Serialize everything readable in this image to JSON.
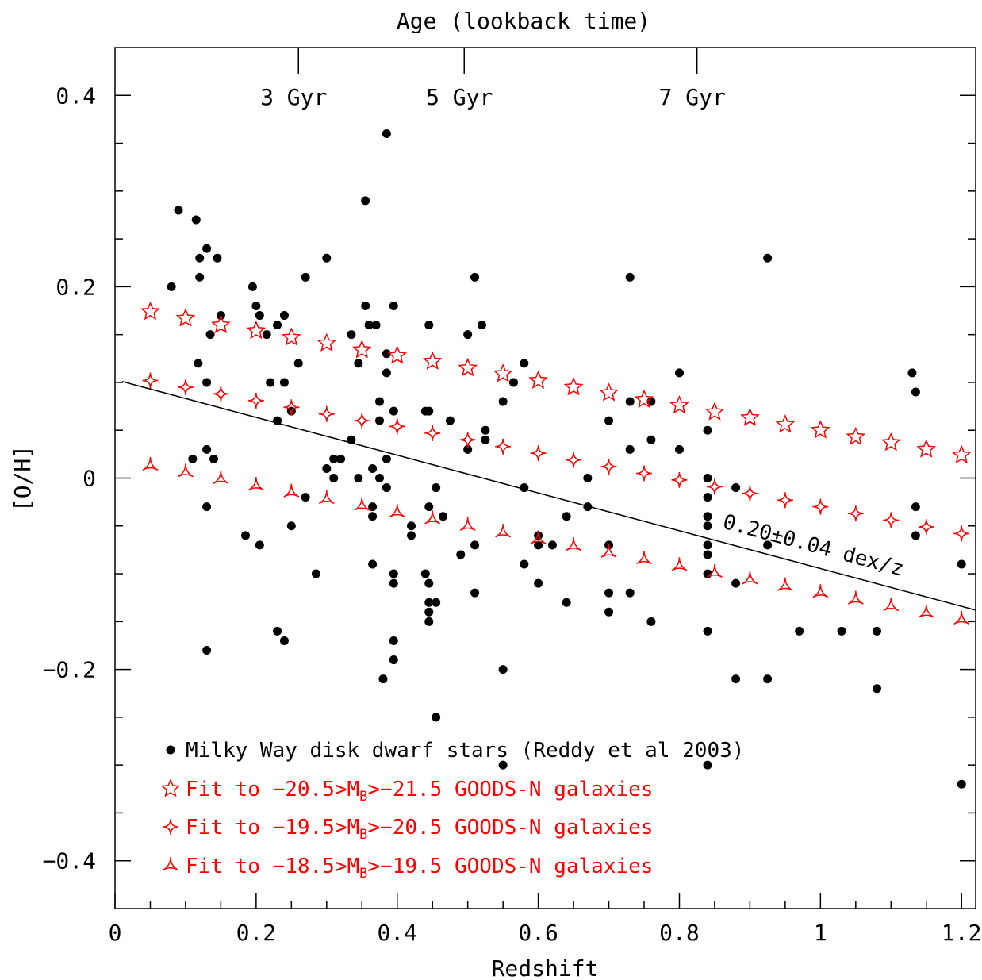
{
  "chart_data": {
    "type": "scatter",
    "title": "",
    "top_axis_label": "Age (lookback time)",
    "top_axis_ticks": [
      {
        "x": 0.26,
        "label": "3 Gyr"
      },
      {
        "x": 0.495,
        "label": "5 Gyr"
      },
      {
        "x": 0.825,
        "label": "7 Gyr"
      }
    ],
    "xlabel": "Redshift",
    "ylabel": "[O/H]",
    "xlim": [
      0,
      1.22
    ],
    "ylim": [
      -0.45,
      0.45
    ],
    "x_ticks": [
      {
        "v": 0,
        "label": "0"
      },
      {
        "v": 0.2,
        "label": "0.2"
      },
      {
        "v": 0.4,
        "label": "0.4"
      },
      {
        "v": 0.6,
        "label": "0.6"
      },
      {
        "v": 0.8,
        "label": "0.8"
      },
      {
        "v": 1.0,
        "label": "1"
      },
      {
        "v": 1.2,
        "label": "1.2"
      }
    ],
    "y_ticks": [
      {
        "v": 0.4,
        "label": "0.4"
      },
      {
        "v": 0.2,
        "label": "0.2"
      },
      {
        "v": 0,
        "label": "0"
      },
      {
        "v": -0.2,
        "label": "−0.2"
      },
      {
        "v": -0.4,
        "label": "−0.4"
      }
    ],
    "colors": {
      "dots": "#000000",
      "fits": "#ff0000",
      "line": "#000000"
    },
    "series": [
      {
        "name": "Milky Way disk dwarf stars (Reddy et al 2003)",
        "marker": "filled-circle",
        "points": [
          [
            0.08,
            0.2
          ],
          [
            0.09,
            0.28
          ],
          [
            0.11,
            0.02
          ],
          [
            0.115,
            0.27
          ],
          [
            0.118,
            0.12
          ],
          [
            0.12,
            0.23
          ],
          [
            0.12,
            0.21
          ],
          [
            0.13,
            0.24
          ],
          [
            0.13,
            0.1
          ],
          [
            0.13,
            0.03
          ],
          [
            0.13,
            -0.03
          ],
          [
            0.13,
            -0.18
          ],
          [
            0.135,
            0.15
          ],
          [
            0.14,
            0.02
          ],
          [
            0.145,
            0.23
          ],
          [
            0.15,
            0.17
          ],
          [
            0.185,
            -0.06
          ],
          [
            0.195,
            0.2
          ],
          [
            0.2,
            0.18
          ],
          [
            0.205,
            0.17
          ],
          [
            0.205,
            -0.07
          ],
          [
            0.215,
            0.15
          ],
          [
            0.22,
            0.1
          ],
          [
            0.23,
            0.16
          ],
          [
            0.23,
            0.06
          ],
          [
            0.23,
            -0.16
          ],
          [
            0.24,
            0.17
          ],
          [
            0.24,
            0.1
          ],
          [
            0.24,
            -0.17
          ],
          [
            0.25,
            0.07
          ],
          [
            0.25,
            -0.05
          ],
          [
            0.26,
            0.12
          ],
          [
            0.27,
            0.21
          ],
          [
            0.27,
            -0.02
          ],
          [
            0.285,
            -0.1
          ],
          [
            0.3,
            0.23
          ],
          [
            0.3,
            0.01
          ],
          [
            0.31,
            0.02
          ],
          [
            0.31,
            0.0
          ],
          [
            0.32,
            0.02
          ],
          [
            0.335,
            0.15
          ],
          [
            0.335,
            0.04
          ],
          [
            0.345,
            0.12
          ],
          [
            0.345,
            0.0
          ],
          [
            0.355,
            0.29
          ],
          [
            0.355,
            0.18
          ],
          [
            0.36,
            0.16
          ],
          [
            0.365,
            0.01
          ],
          [
            0.365,
            -0.03
          ],
          [
            0.365,
            -0.04
          ],
          [
            0.365,
            -0.09
          ],
          [
            0.37,
            0.16
          ],
          [
            0.375,
            0.08
          ],
          [
            0.375,
            0.06
          ],
          [
            0.375,
            0.0
          ],
          [
            0.38,
            -0.21
          ],
          [
            0.385,
            0.36
          ],
          [
            0.385,
            0.13
          ],
          [
            0.385,
            0.11
          ],
          [
            0.385,
            0.02
          ],
          [
            0.385,
            -0.01
          ],
          [
            0.395,
            0.18
          ],
          [
            0.395,
            0.07
          ],
          [
            0.395,
            -0.1
          ],
          [
            0.395,
            -0.11
          ],
          [
            0.395,
            -0.17
          ],
          [
            0.395,
            -0.19
          ],
          [
            0.42,
            -0.05
          ],
          [
            0.42,
            -0.06
          ],
          [
            0.44,
            0.07
          ],
          [
            0.44,
            -0.1
          ],
          [
            0.445,
            0.16
          ],
          [
            0.445,
            0.07
          ],
          [
            0.445,
            -0.03
          ],
          [
            0.445,
            -0.11
          ],
          [
            0.445,
            -0.13
          ],
          [
            0.445,
            -0.14
          ],
          [
            0.445,
            -0.15
          ],
          [
            0.455,
            -0.01
          ],
          [
            0.455,
            -0.13
          ],
          [
            0.455,
            -0.25
          ],
          [
            0.465,
            -0.04
          ],
          [
            0.475,
            0.06
          ],
          [
            0.49,
            -0.08
          ],
          [
            0.5,
            0.15
          ],
          [
            0.5,
            0.03
          ],
          [
            0.51,
            0.21
          ],
          [
            0.51,
            -0.07
          ],
          [
            0.51,
            -0.12
          ],
          [
            0.52,
            0.16
          ],
          [
            0.525,
            0.05
          ],
          [
            0.525,
            0.04
          ],
          [
            0.55,
            0.08
          ],
          [
            0.55,
            -0.2
          ],
          [
            0.55,
            -0.3
          ],
          [
            0.565,
            0.1
          ],
          [
            0.58,
            0.12
          ],
          [
            0.58,
            -0.01
          ],
          [
            0.58,
            -0.09
          ],
          [
            0.6,
            -0.06
          ],
          [
            0.6,
            -0.07
          ],
          [
            0.6,
            -0.11
          ],
          [
            0.62,
            -0.07
          ],
          [
            0.64,
            -0.04
          ],
          [
            0.64,
            -0.13
          ],
          [
            0.67,
            0.0
          ],
          [
            0.67,
            -0.03
          ],
          [
            0.7,
            0.06
          ],
          [
            0.7,
            -0.07
          ],
          [
            0.7,
            -0.12
          ],
          [
            0.7,
            -0.14
          ],
          [
            0.73,
            0.21
          ],
          [
            0.73,
            0.08
          ],
          [
            0.73,
            0.03
          ],
          [
            0.73,
            -0.12
          ],
          [
            0.76,
            0.08
          ],
          [
            0.76,
            0.04
          ],
          [
            0.76,
            -0.15
          ],
          [
            0.8,
            0.11
          ],
          [
            0.8,
            0.03
          ],
          [
            0.84,
            0.05
          ],
          [
            0.84,
            0.0
          ],
          [
            0.84,
            -0.02
          ],
          [
            0.84,
            -0.04
          ],
          [
            0.84,
            -0.05
          ],
          [
            0.84,
            -0.07
          ],
          [
            0.84,
            -0.08
          ],
          [
            0.84,
            -0.1
          ],
          [
            0.84,
            -0.16
          ],
          [
            0.84,
            -0.3
          ],
          [
            0.88,
            -0.01
          ],
          [
            0.88,
            -0.11
          ],
          [
            0.88,
            -0.21
          ],
          [
            0.925,
            0.23
          ],
          [
            0.925,
            -0.07
          ],
          [
            0.925,
            -0.21
          ],
          [
            0.97,
            -0.16
          ],
          [
            1.03,
            -0.16
          ],
          [
            1.08,
            -0.16
          ],
          [
            1.08,
            -0.22
          ],
          [
            1.13,
            0.11
          ],
          [
            1.135,
            0.09
          ],
          [
            1.135,
            -0.03
          ],
          [
            1.135,
            -0.06
          ],
          [
            1.2,
            -0.09
          ],
          [
            1.2,
            -0.32
          ]
        ]
      },
      {
        "name": "Fit to −20.5>M_B>−21.5 GOODS-N galaxies",
        "marker": "star",
        "points": [
          [
            0.05,
            0.174
          ],
          [
            0.1,
            0.167
          ],
          [
            0.15,
            0.16
          ],
          [
            0.2,
            0.154
          ],
          [
            0.25,
            0.147
          ],
          [
            0.3,
            0.141
          ],
          [
            0.35,
            0.134
          ],
          [
            0.4,
            0.128
          ],
          [
            0.45,
            0.122
          ],
          [
            0.5,
            0.115
          ],
          [
            0.55,
            0.109
          ],
          [
            0.6,
            0.102
          ],
          [
            0.65,
            0.095
          ],
          [
            0.7,
            0.089
          ],
          [
            0.75,
            0.082
          ],
          [
            0.8,
            0.076
          ],
          [
            0.85,
            0.069
          ],
          [
            0.9,
            0.063
          ],
          [
            0.95,
            0.056
          ],
          [
            1.0,
            0.05
          ],
          [
            1.05,
            0.043
          ],
          [
            1.1,
            0.037
          ],
          [
            1.15,
            0.03
          ],
          [
            1.2,
            0.024
          ]
        ]
      },
      {
        "name": "Fit to −19.5>M_B>−20.5 GOODS-N galaxies",
        "marker": "astroid",
        "points": [
          [
            0.05,
            0.102
          ],
          [
            0.1,
            0.095
          ],
          [
            0.15,
            0.088
          ],
          [
            0.2,
            0.081
          ],
          [
            0.25,
            0.074
          ],
          [
            0.3,
            0.067
          ],
          [
            0.35,
            0.06
          ],
          [
            0.4,
            0.054
          ],
          [
            0.45,
            0.047
          ],
          [
            0.5,
            0.04
          ],
          [
            0.55,
            0.033
          ],
          [
            0.6,
            0.026
          ],
          [
            0.65,
            0.019
          ],
          [
            0.7,
            0.012
          ],
          [
            0.75,
            0.005
          ],
          [
            0.8,
            -0.002
          ],
          [
            0.85,
            -0.009
          ],
          [
            0.9,
            -0.016
          ],
          [
            0.95,
            -0.023
          ],
          [
            1.0,
            -0.03
          ],
          [
            1.05,
            -0.037
          ],
          [
            1.1,
            -0.044
          ],
          [
            1.15,
            -0.051
          ],
          [
            1.2,
            -0.058
          ]
        ]
      },
      {
        "name": "Fit to −18.5>M_B>−19.5 GOODS-N galaxies",
        "marker": "tri-star",
        "points": [
          [
            0.05,
            0.013
          ],
          [
            0.1,
            0.006
          ],
          [
            0.15,
            -0.001
          ],
          [
            0.2,
            -0.008
          ],
          [
            0.25,
            -0.015
          ],
          [
            0.3,
            -0.022
          ],
          [
            0.35,
            -0.029
          ],
          [
            0.4,
            -0.036
          ],
          [
            0.45,
            -0.043
          ],
          [
            0.5,
            -0.05
          ],
          [
            0.55,
            -0.057
          ],
          [
            0.6,
            -0.064
          ],
          [
            0.65,
            -0.071
          ],
          [
            0.7,
            -0.078
          ],
          [
            0.75,
            -0.085
          ],
          [
            0.8,
            -0.092
          ],
          [
            0.85,
            -0.099
          ],
          [
            0.9,
            -0.106
          ],
          [
            0.95,
            -0.113
          ],
          [
            1.0,
            -0.12
          ],
          [
            1.05,
            -0.127
          ],
          [
            1.1,
            -0.134
          ],
          [
            1.15,
            -0.141
          ],
          [
            1.2,
            -0.148
          ]
        ]
      }
    ],
    "fit_line": {
      "x0": 0.01,
      "y0": 0.101,
      "x1": 1.22,
      "y1": -0.138,
      "label": "0.20±0.04 dex/z"
    },
    "legend": {
      "placement": "bottom-left",
      "entries": [
        {
          "prefix": "Milky Way disk dwarf stars  (Reddy et al 2003)",
          "sub": "",
          "suffix": "",
          "marker": "filled-circle",
          "color": "#000000"
        },
        {
          "prefix": "Fit to −20.5>M",
          "sub": "B",
          "suffix": ">−21.5 GOODS-N galaxies",
          "marker": "star",
          "color": "#ff0000"
        },
        {
          "prefix": "Fit to −19.5>M",
          "sub": "B",
          "suffix": ">−20.5 GOODS-N galaxies",
          "marker": "astroid",
          "color": "#ff0000"
        },
        {
          "prefix": "Fit to −18.5>M",
          "sub": "B",
          "suffix": ">−19.5 GOODS-N galaxies",
          "marker": "tri-star",
          "color": "#ff0000"
        }
      ]
    }
  }
}
